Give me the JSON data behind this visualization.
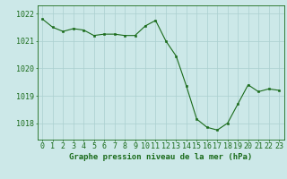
{
  "x": [
    0,
    1,
    2,
    3,
    4,
    5,
    6,
    7,
    8,
    9,
    10,
    11,
    12,
    13,
    14,
    15,
    16,
    17,
    18,
    19,
    20,
    21,
    22,
    23
  ],
  "y": [
    1021.8,
    1021.5,
    1021.35,
    1021.45,
    1021.4,
    1021.2,
    1021.25,
    1021.25,
    1021.2,
    1021.2,
    1021.55,
    1021.75,
    1021.0,
    1020.45,
    1019.35,
    1018.15,
    1017.85,
    1017.75,
    1018.0,
    1018.7,
    1019.4,
    1019.15,
    1019.25,
    1019.2
  ],
  "line_color": "#1a6b1a",
  "marker_color": "#1a6b1a",
  "bg_color": "#cce8e8",
  "grid_color": "#aacfcf",
  "axis_label_color": "#1a6b1a",
  "tick_color": "#1a6b1a",
  "ylabel_ticks": [
    1018,
    1019,
    1020,
    1021,
    1022
  ],
  "xlabel": "Graphe pression niveau de la mer (hPa)",
  "xlim": [
    -0.5,
    23.5
  ],
  "ylim": [
    1017.4,
    1022.3
  ],
  "label_fontsize": 6.5,
  "tick_fontsize": 6.0
}
